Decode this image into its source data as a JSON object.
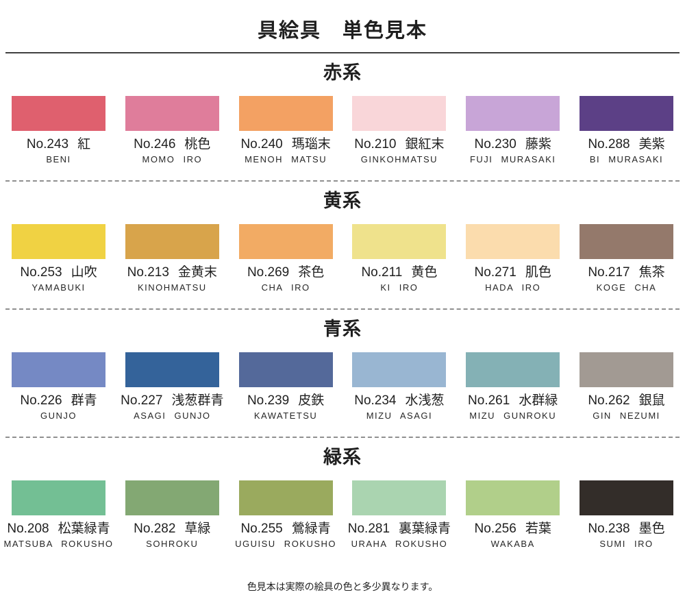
{
  "page": {
    "title": "具絵具　単色見本",
    "footer": "色見本は実際の絵具の色と多少異なります。"
  },
  "sections": [
    {
      "heading": "赤系",
      "swatches": [
        {
          "no": "No.243",
          "name": "紅",
          "roman": "BENI",
          "color": "#df606e"
        },
        {
          "no": "No.246",
          "name": "桃色",
          "roman": "MOMO IRO",
          "color": "#df7d9b"
        },
        {
          "no": "No.240",
          "name": "瑪瑙末",
          "roman": "MENOH MATSU",
          "color": "#f3a163"
        },
        {
          "no": "No.210",
          "name": "銀紅末",
          "roman": "GINKOHMATSU",
          "color": "#f9d6d9"
        },
        {
          "no": "No.230",
          "name": "藤紫",
          "roman": "FUJI MURASAKI",
          "color": "#c8a5d7"
        },
        {
          "no": "No.288",
          "name": "美紫",
          "roman": "BI MURASAKI",
          "color": "#5c4086"
        }
      ]
    },
    {
      "heading": "黄系",
      "swatches": [
        {
          "no": "No.253",
          "name": "山吹",
          "roman": "YAMABUKI",
          "color": "#f0d243"
        },
        {
          "no": "No.213",
          "name": "金黄末",
          "roman": "KINOHMATSU",
          "color": "#d8a44b"
        },
        {
          "no": "No.269",
          "name": "茶色",
          "roman": "CHA IRO",
          "color": "#f2ab64"
        },
        {
          "no": "No.211",
          "name": "黄色",
          "roman": "KI IRO",
          "color": "#efe28c"
        },
        {
          "no": "No.271",
          "name": "肌色",
          "roman": "HADA IRO",
          "color": "#fbdcad"
        },
        {
          "no": "No.217",
          "name": "焦茶",
          "roman": "KOGE CHA",
          "color": "#94796b"
        }
      ]
    },
    {
      "heading": "青系",
      "swatches": [
        {
          "no": "No.226",
          "name": "群青",
          "roman": "GUNJO",
          "color": "#7589c4"
        },
        {
          "no": "No.227",
          "name": "浅葱群青",
          "roman": "ASAGI GUNJO",
          "color": "#34639a"
        },
        {
          "no": "No.239",
          "name": "皮鉄",
          "roman": "KAWATETSU",
          "color": "#54699a"
        },
        {
          "no": "No.234",
          "name": "水浅葱",
          "roman": "MIZU ASAGI",
          "color": "#99b6d2"
        },
        {
          "no": "No.261",
          "name": "水群緑",
          "roman": "MIZU GUNROKU",
          "color": "#84b1b5"
        },
        {
          "no": "No.262",
          "name": "銀鼠",
          "roman": "GIN NEZUMI",
          "color": "#a29a93"
        }
      ]
    },
    {
      "heading": "緑系",
      "swatches": [
        {
          "no": "No.208",
          "name": "松葉緑青",
          "roman": "MATSUBA ROKUSHO",
          "color": "#73bf94"
        },
        {
          "no": "No.282",
          "name": "草緑",
          "roman": "SOHROKU",
          "color": "#83a873"
        },
        {
          "no": "No.255",
          "name": "鶯緑青",
          "roman": "UGUISU ROKUSHO",
          "color": "#9aaa5e"
        },
        {
          "no": "No.281",
          "name": "裏葉緑青",
          "roman": "URAHA ROKUSHO",
          "color": "#aad4b0"
        },
        {
          "no": "No.256",
          "name": "若葉",
          "roman": "WAKABA",
          "color": "#b1cf8a"
        },
        {
          "no": "No.238",
          "name": "墨色",
          "roman": "SUMI IRO",
          "color": "#332d29"
        }
      ]
    }
  ]
}
